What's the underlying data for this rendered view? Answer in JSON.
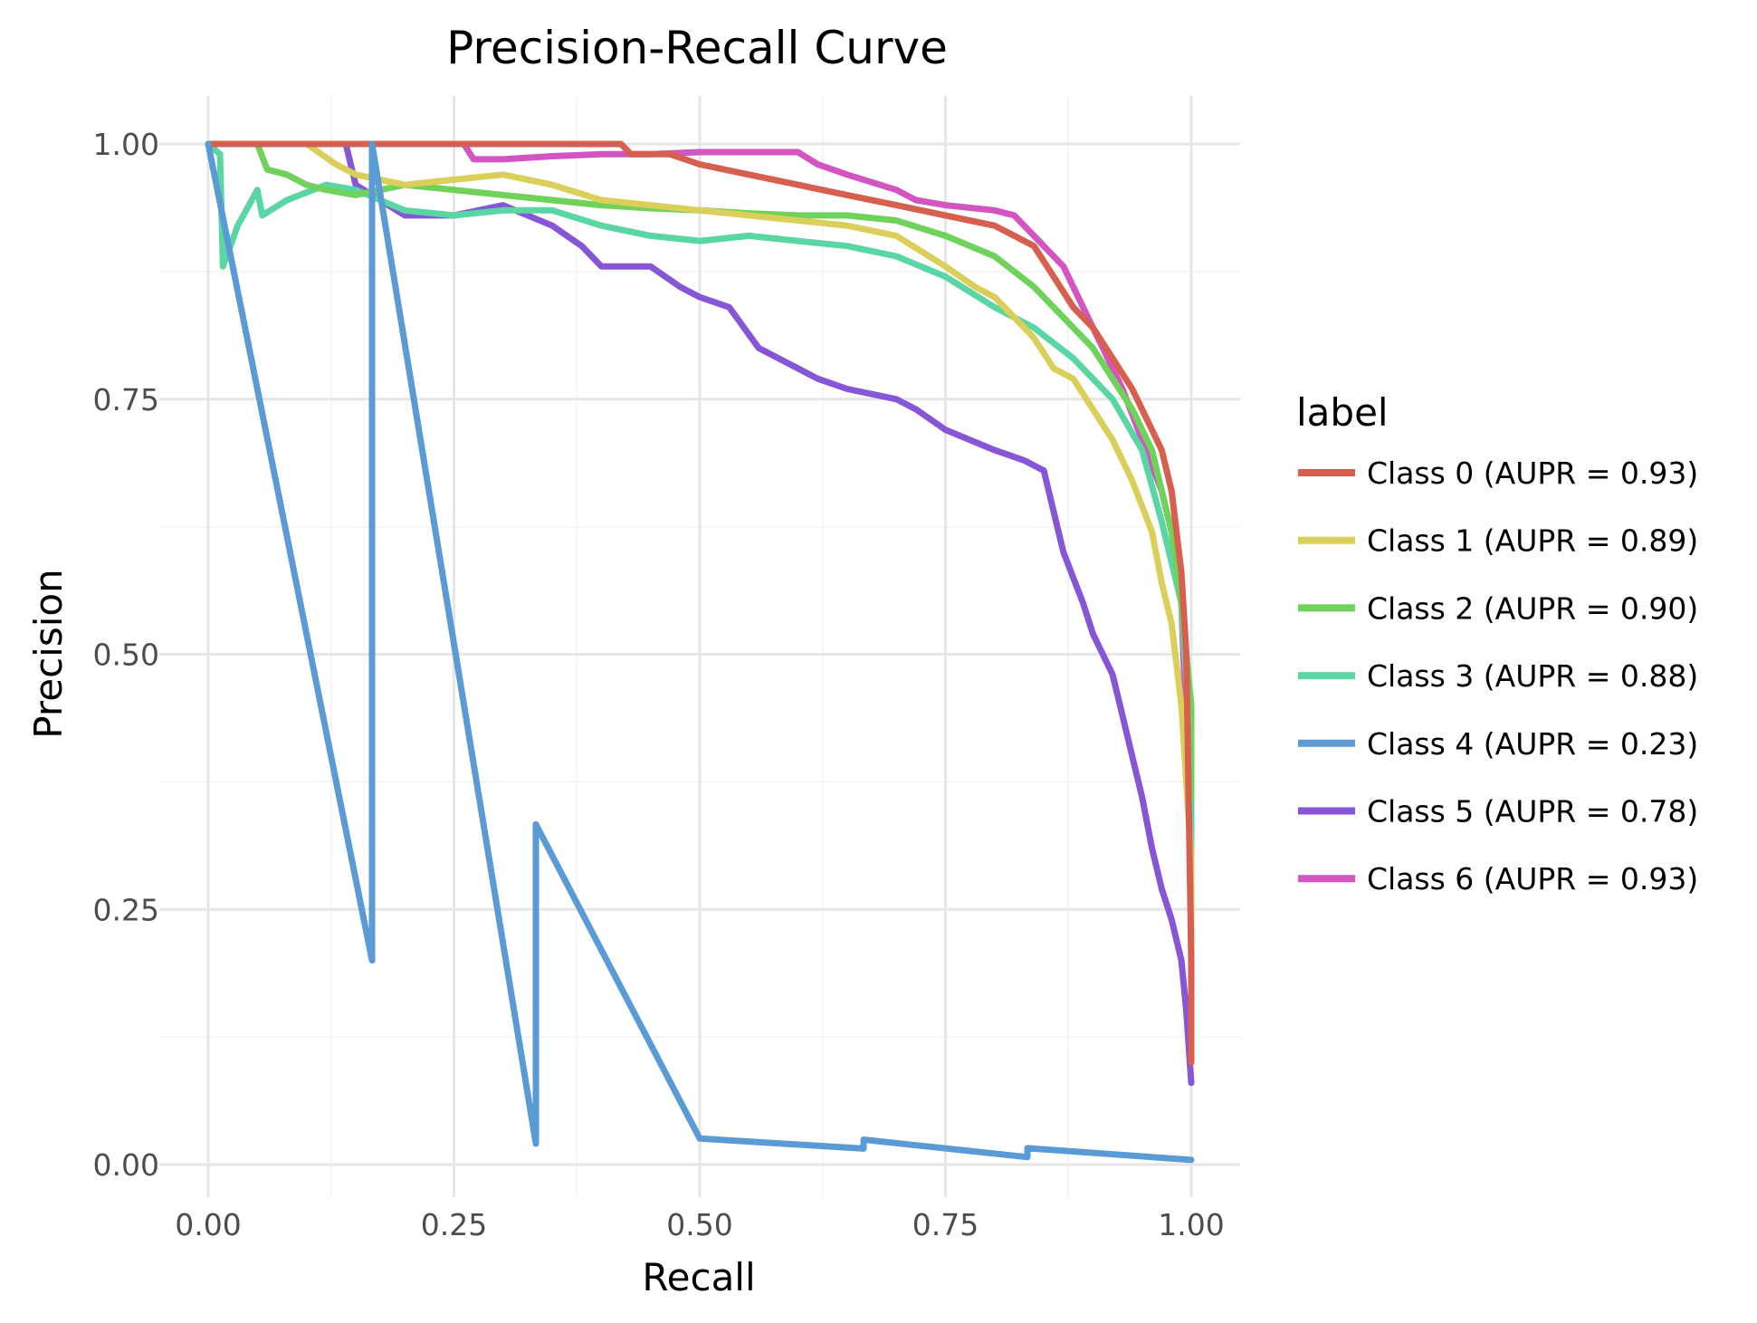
{
  "chart_data": {
    "type": "line",
    "title": "Precision-Recall Curve",
    "xlabel": "Recall",
    "ylabel": "Precision",
    "xlim": [
      0,
      1
    ],
    "ylim": [
      0,
      1
    ],
    "x_ticks": [
      0,
      0.25,
      0.5,
      0.75,
      1
    ],
    "x_tick_labels": [
      "0.00",
      "0.25",
      "0.50",
      "0.75",
      "1.00"
    ],
    "y_ticks": [
      0,
      0.25,
      0.5,
      0.75,
      1
    ],
    "y_tick_labels": [
      "0.00",
      "0.25",
      "0.50",
      "0.75",
      "1.00"
    ],
    "grid": true,
    "legend_title": "label",
    "legend_position": "right",
    "series": [
      {
        "name": "Class 0 (AUPR = 0.93)",
        "color": "#d65f4f",
        "points": [
          [
            0,
            1
          ],
          [
            0.1,
            1
          ],
          [
            0.2,
            1
          ],
          [
            0.3,
            1
          ],
          [
            0.42,
            1
          ],
          [
            0.43,
            0.99
          ],
          [
            0.47,
            0.99
          ],
          [
            0.5,
            0.98
          ],
          [
            0.55,
            0.97
          ],
          [
            0.6,
            0.96
          ],
          [
            0.65,
            0.95
          ],
          [
            0.7,
            0.94
          ],
          [
            0.75,
            0.93
          ],
          [
            0.8,
            0.92
          ],
          [
            0.82,
            0.91
          ],
          [
            0.84,
            0.9
          ],
          [
            0.86,
            0.87
          ],
          [
            0.88,
            0.84
          ],
          [
            0.9,
            0.82
          ],
          [
            0.92,
            0.79
          ],
          [
            0.94,
            0.76
          ],
          [
            0.96,
            0.72
          ],
          [
            0.97,
            0.7
          ],
          [
            0.98,
            0.66
          ],
          [
            0.99,
            0.58
          ],
          [
            0.995,
            0.5
          ],
          [
            1.0,
            0.2
          ],
          [
            1.0,
            0.1
          ]
        ]
      },
      {
        "name": "Class 1 (AUPR = 0.89)",
        "color": "#d9cf5a",
        "points": [
          [
            0,
            1
          ],
          [
            0.1,
            1
          ],
          [
            0.13,
            0.98
          ],
          [
            0.15,
            0.97
          ],
          [
            0.2,
            0.96
          ],
          [
            0.25,
            0.965
          ],
          [
            0.3,
            0.97
          ],
          [
            0.35,
            0.96
          ],
          [
            0.4,
            0.945
          ],
          [
            0.45,
            0.94
          ],
          [
            0.5,
            0.935
          ],
          [
            0.55,
            0.93
          ],
          [
            0.6,
            0.925
          ],
          [
            0.65,
            0.92
          ],
          [
            0.7,
            0.91
          ],
          [
            0.75,
            0.88
          ],
          [
            0.78,
            0.86
          ],
          [
            0.8,
            0.85
          ],
          [
            0.82,
            0.83
          ],
          [
            0.84,
            0.81
          ],
          [
            0.86,
            0.78
          ],
          [
            0.88,
            0.77
          ],
          [
            0.9,
            0.74
          ],
          [
            0.92,
            0.71
          ],
          [
            0.94,
            0.67
          ],
          [
            0.96,
            0.62
          ],
          [
            0.97,
            0.57
          ],
          [
            0.98,
            0.53
          ],
          [
            0.99,
            0.45
          ],
          [
            1.0,
            0.3
          ],
          [
            1.0,
            0.18
          ]
        ]
      },
      {
        "name": "Class 2 (AUPR = 0.90)",
        "color": "#6fd25a",
        "points": [
          [
            0,
            1
          ],
          [
            0.05,
            1
          ],
          [
            0.06,
            0.975
          ],
          [
            0.08,
            0.97
          ],
          [
            0.1,
            0.96
          ],
          [
            0.12,
            0.955
          ],
          [
            0.15,
            0.95
          ],
          [
            0.2,
            0.96
          ],
          [
            0.25,
            0.955
          ],
          [
            0.3,
            0.95
          ],
          [
            0.35,
            0.945
          ],
          [
            0.4,
            0.94
          ],
          [
            0.45,
            0.937
          ],
          [
            0.5,
            0.935
          ],
          [
            0.55,
            0.932
          ],
          [
            0.6,
            0.93
          ],
          [
            0.65,
            0.93
          ],
          [
            0.7,
            0.925
          ],
          [
            0.75,
            0.91
          ],
          [
            0.8,
            0.89
          ],
          [
            0.84,
            0.86
          ],
          [
            0.87,
            0.83
          ],
          [
            0.9,
            0.8
          ],
          [
            0.92,
            0.77
          ],
          [
            0.94,
            0.74
          ],
          [
            0.96,
            0.7
          ],
          [
            0.98,
            0.62
          ],
          [
            0.99,
            0.55
          ],
          [
            1.0,
            0.45
          ],
          [
            1.0,
            0.36
          ]
        ]
      },
      {
        "name": "Class 3 (AUPR = 0.88)",
        "color": "#5ad6a4",
        "points": [
          [
            0,
            1
          ],
          [
            0.012,
            0.99
          ],
          [
            0.015,
            0.88
          ],
          [
            0.03,
            0.92
          ],
          [
            0.05,
            0.955
          ],
          [
            0.055,
            0.93
          ],
          [
            0.08,
            0.945
          ],
          [
            0.12,
            0.96
          ],
          [
            0.15,
            0.955
          ],
          [
            0.2,
            0.935
          ],
          [
            0.25,
            0.93
          ],
          [
            0.3,
            0.935
          ],
          [
            0.35,
            0.935
          ],
          [
            0.4,
            0.92
          ],
          [
            0.45,
            0.91
          ],
          [
            0.5,
            0.905
          ],
          [
            0.55,
            0.91
          ],
          [
            0.6,
            0.905
          ],
          [
            0.65,
            0.9
          ],
          [
            0.7,
            0.89
          ],
          [
            0.75,
            0.87
          ],
          [
            0.8,
            0.84
          ],
          [
            0.84,
            0.82
          ],
          [
            0.88,
            0.79
          ],
          [
            0.92,
            0.75
          ],
          [
            0.95,
            0.7
          ],
          [
            0.97,
            0.63
          ],
          [
            0.99,
            0.55
          ],
          [
            1.0,
            0.4
          ],
          [
            1.0,
            0.25
          ]
        ]
      },
      {
        "name": "Class 4 (AUPR = 0.23)",
        "color": "#5a9bd5",
        "points": [
          [
            0,
            1
          ],
          [
            0.1667,
            0.2
          ],
          [
            0.1667,
            1
          ],
          [
            0.3333,
            0.0204
          ],
          [
            0.3333,
            0.3333
          ],
          [
            0.5,
            0.0255
          ],
          [
            0.6667,
            0.0156
          ],
          [
            0.6667,
            0.0244
          ],
          [
            0.8333,
            0.0073
          ],
          [
            0.8333,
            0.0161
          ],
          [
            1.0,
            0.0045
          ]
        ]
      },
      {
        "name": "Class 5 (AUPR = 0.78)",
        "color": "#8656d6",
        "points": [
          [
            0.13,
            1
          ],
          [
            0.14,
            1
          ],
          [
            0.15,
            0.96
          ],
          [
            0.2,
            0.93
          ],
          [
            0.25,
            0.93
          ],
          [
            0.3,
            0.94
          ],
          [
            0.35,
            0.92
          ],
          [
            0.38,
            0.9
          ],
          [
            0.4,
            0.88
          ],
          [
            0.45,
            0.88
          ],
          [
            0.48,
            0.86
          ],
          [
            0.5,
            0.85
          ],
          [
            0.53,
            0.84
          ],
          [
            0.56,
            0.8
          ],
          [
            0.6,
            0.78
          ],
          [
            0.62,
            0.77
          ],
          [
            0.65,
            0.76
          ],
          [
            0.7,
            0.75
          ],
          [
            0.72,
            0.74
          ],
          [
            0.75,
            0.72
          ],
          [
            0.8,
            0.7
          ],
          [
            0.83,
            0.69
          ],
          [
            0.85,
            0.68
          ],
          [
            0.87,
            0.6
          ],
          [
            0.89,
            0.55
          ],
          [
            0.9,
            0.52
          ],
          [
            0.91,
            0.5
          ],
          [
            0.92,
            0.48
          ],
          [
            0.93,
            0.44
          ],
          [
            0.94,
            0.4
          ],
          [
            0.95,
            0.36
          ],
          [
            0.96,
            0.31
          ],
          [
            0.97,
            0.27
          ],
          [
            0.98,
            0.24
          ],
          [
            0.99,
            0.2
          ],
          [
            0.995,
            0.15
          ],
          [
            1.0,
            0.08
          ]
        ]
      },
      {
        "name": "Class 6 (AUPR = 0.93)",
        "color": "#d355c2",
        "points": [
          [
            0,
            1
          ],
          [
            0.1,
            1
          ],
          [
            0.2,
            1
          ],
          [
            0.26,
            1
          ],
          [
            0.27,
            0.985
          ],
          [
            0.3,
            0.985
          ],
          [
            0.35,
            0.988
          ],
          [
            0.4,
            0.99
          ],
          [
            0.45,
            0.99
          ],
          [
            0.5,
            0.992
          ],
          [
            0.6,
            0.992
          ],
          [
            0.62,
            0.98
          ],
          [
            0.65,
            0.97
          ],
          [
            0.7,
            0.955
          ],
          [
            0.72,
            0.945
          ],
          [
            0.75,
            0.94
          ],
          [
            0.8,
            0.935
          ],
          [
            0.82,
            0.93
          ],
          [
            0.83,
            0.92
          ],
          [
            0.85,
            0.9
          ],
          [
            0.87,
            0.88
          ],
          [
            0.88,
            0.86
          ],
          [
            0.89,
            0.84
          ],
          [
            0.9,
            0.82
          ],
          [
            0.91,
            0.8
          ],
          [
            0.93,
            0.76
          ],
          [
            0.95,
            0.71
          ],
          [
            0.97,
            0.66
          ],
          [
            0.98,
            0.62
          ],
          [
            0.99,
            0.55
          ],
          [
            1.0,
            0.3
          ],
          [
            1.0,
            0.1
          ]
        ]
      }
    ]
  }
}
